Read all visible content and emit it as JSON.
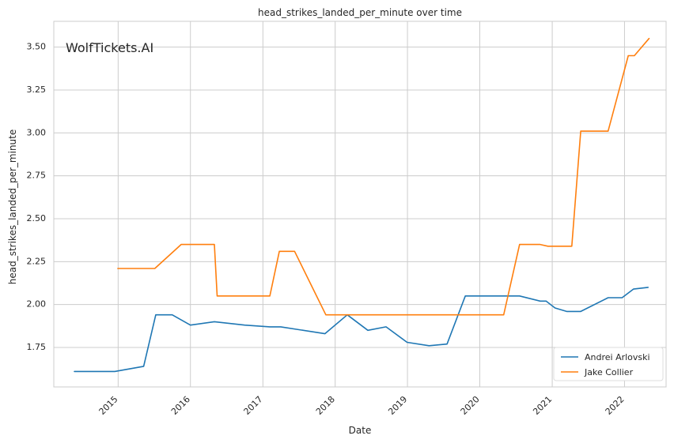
{
  "chart_data": {
    "type": "line",
    "title": "head_strikes_landed_per_minute over time",
    "xlabel": "Date",
    "ylabel": "head_strikes_landed_per_minute",
    "watermark": "WolfTickets.AI",
    "x_axis": {
      "type": "date",
      "range": [
        "2014-02-10",
        "2022-07-30"
      ],
      "ticks": [
        {
          "date": "2015-01-01",
          "label": "2015"
        },
        {
          "date": "2016-01-01",
          "label": "2016"
        },
        {
          "date": "2017-01-01",
          "label": "2017"
        },
        {
          "date": "2018-01-01",
          "label": "2018"
        },
        {
          "date": "2019-01-01",
          "label": "2019"
        },
        {
          "date": "2020-01-01",
          "label": "2020"
        },
        {
          "date": "2021-01-01",
          "label": "2021"
        },
        {
          "date": "2022-01-01",
          "label": "2022"
        }
      ]
    },
    "y_axis": {
      "range": [
        1.52,
        3.65
      ],
      "ticks": [
        {
          "value": 1.75,
          "label": "1.75"
        },
        {
          "value": 2.0,
          "label": "2.00"
        },
        {
          "value": 2.25,
          "label": "2.25"
        },
        {
          "value": 2.5,
          "label": "2.50"
        },
        {
          "value": 2.75,
          "label": "2.75"
        },
        {
          "value": 3.0,
          "label": "3.00"
        },
        {
          "value": 3.25,
          "label": "3.25"
        },
        {
          "value": 3.5,
          "label": "3.50"
        }
      ]
    },
    "grid": true,
    "legend_position": "bottom-right",
    "series": [
      {
        "name": "Andrei Arlovski",
        "color": "#1f77b4",
        "points": [
          {
            "x": "2014-05-25",
            "y": 1.61
          },
          {
            "x": "2014-12-15",
            "y": 1.61
          },
          {
            "x": "2015-05-10",
            "y": 1.64
          },
          {
            "x": "2015-07-10",
            "y": 1.94
          },
          {
            "x": "2015-10-01",
            "y": 1.94
          },
          {
            "x": "2016-01-01",
            "y": 1.88
          },
          {
            "x": "2016-05-01",
            "y": 1.9
          },
          {
            "x": "2016-10-01",
            "y": 1.88
          },
          {
            "x": "2017-02-05",
            "y": 1.87
          },
          {
            "x": "2017-04-01",
            "y": 1.87
          },
          {
            "x": "2017-11-10",
            "y": 1.83
          },
          {
            "x": "2018-03-03",
            "y": 1.94
          },
          {
            "x": "2018-06-15",
            "y": 1.85
          },
          {
            "x": "2018-09-15",
            "y": 1.87
          },
          {
            "x": "2018-12-30",
            "y": 1.78
          },
          {
            "x": "2019-04-20",
            "y": 1.76
          },
          {
            "x": "2019-07-20",
            "y": 1.77
          },
          {
            "x": "2019-10-20",
            "y": 2.05
          },
          {
            "x": "2020-04-01",
            "y": 2.05
          },
          {
            "x": "2020-07-20",
            "y": 2.05
          },
          {
            "x": "2020-11-01",
            "y": 2.02
          },
          {
            "x": "2020-12-01",
            "y": 2.02
          },
          {
            "x": "2021-01-15",
            "y": 1.98
          },
          {
            "x": "2021-03-15",
            "y": 1.96
          },
          {
            "x": "2021-05-25",
            "y": 1.96
          },
          {
            "x": "2021-10-10",
            "y": 2.04
          },
          {
            "x": "2021-12-20",
            "y": 2.04
          },
          {
            "x": "2022-02-15",
            "y": 2.09
          },
          {
            "x": "2022-04-30",
            "y": 2.1
          }
        ]
      },
      {
        "name": "Jake Collier",
        "color": "#ff7f0e",
        "points": [
          {
            "x": "2014-12-30",
            "y": 2.21
          },
          {
            "x": "2015-07-05",
            "y": 2.21
          },
          {
            "x": "2015-11-15",
            "y": 2.35
          },
          {
            "x": "2016-05-01",
            "y": 2.35
          },
          {
            "x": "2016-05-15",
            "y": 2.05
          },
          {
            "x": "2017-02-05",
            "y": 2.05
          },
          {
            "x": "2017-03-25",
            "y": 2.31
          },
          {
            "x": "2017-06-10",
            "y": 2.31
          },
          {
            "x": "2017-11-15",
            "y": 1.94
          },
          {
            "x": "2020-05-01",
            "y": 1.94
          },
          {
            "x": "2020-07-20",
            "y": 2.35
          },
          {
            "x": "2020-11-01",
            "y": 2.35
          },
          {
            "x": "2020-12-10",
            "y": 2.34
          },
          {
            "x": "2021-04-10",
            "y": 2.34
          },
          {
            "x": "2021-05-25",
            "y": 3.01
          },
          {
            "x": "2021-10-10",
            "y": 3.01
          },
          {
            "x": "2022-01-20",
            "y": 3.45
          },
          {
            "x": "2022-02-20",
            "y": 3.45
          },
          {
            "x": "2022-05-05",
            "y": 3.55
          }
        ]
      }
    ]
  }
}
